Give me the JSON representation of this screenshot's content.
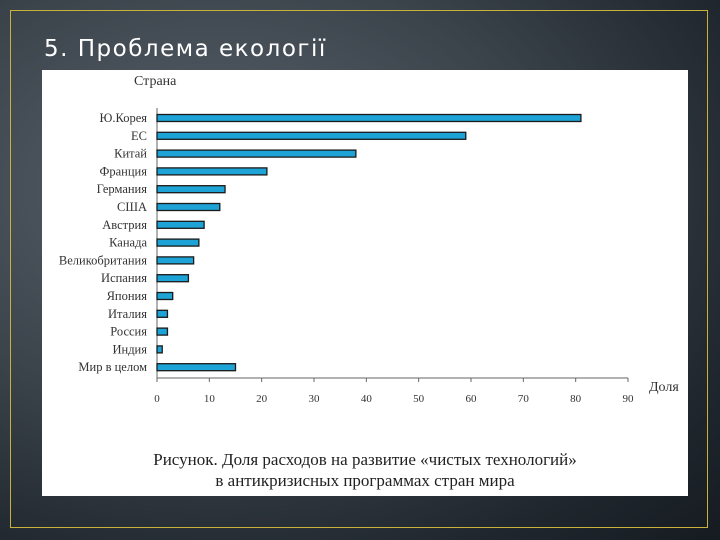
{
  "slide": {
    "title": "5. Проблема екології"
  },
  "colors": {
    "bar_fill": "#1ea3d6",
    "bar_stroke": "#1a1a1a",
    "frame": "#c9b23a"
  },
  "caption": {
    "line1": "Рисунок. Доля расходов на развитие «чистых технологий»",
    "line2": "в антикризисных программах стран мира"
  },
  "chart_data": {
    "type": "bar",
    "orientation": "horizontal",
    "ylabel": "Страна",
    "xlabel": "Доля",
    "xlim": [
      0,
      90
    ],
    "xticks": [
      0,
      10,
      20,
      30,
      40,
      50,
      60,
      70,
      80,
      90
    ],
    "categories": [
      "Ю.Корея",
      "ЕС",
      "Китай",
      "Франция",
      "Германия",
      "США",
      "Австрия",
      "Канада",
      "Великобритания",
      "Испания",
      "Япония",
      "Италия",
      "Россия",
      "Индия",
      "Мир в целом"
    ],
    "values": [
      81,
      59,
      38,
      21,
      13,
      12,
      9,
      8,
      7,
      6,
      3,
      2,
      2,
      1,
      15
    ]
  }
}
